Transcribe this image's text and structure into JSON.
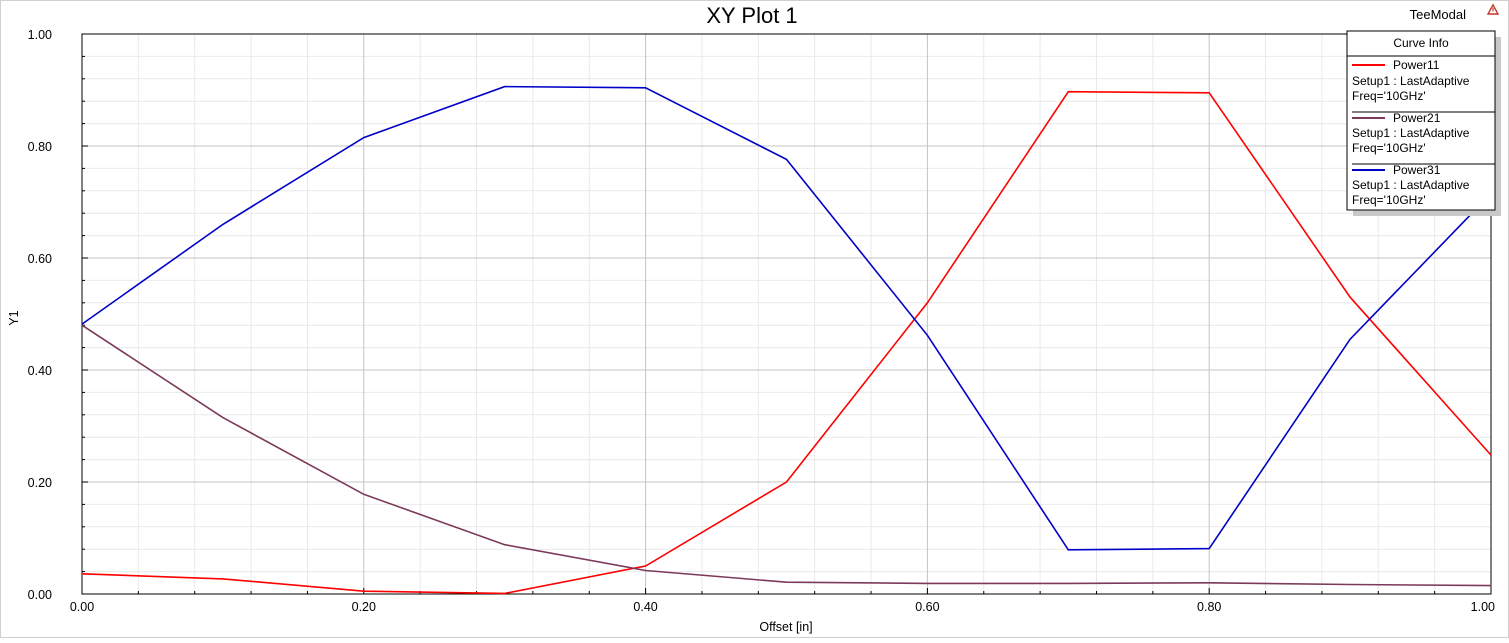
{
  "project_name": "TeeModal",
  "project_icon": "warning-triangle-icon",
  "chart_data": {
    "type": "line",
    "title": "XY Plot 1",
    "xlabel": "Offset [in]",
    "ylabel": "Y1",
    "xlim": [
      0,
      1
    ],
    "ylim": [
      0,
      1
    ],
    "grid": true,
    "x_ticks": [
      "0.00",
      "0.20",
      "0.40",
      "0.60",
      "0.80",
      "1.00"
    ],
    "y_ticks": [
      "0.00",
      "0.20",
      "0.40",
      "0.60",
      "0.80",
      "1.00"
    ],
    "legend": {
      "title": "Curve Info",
      "placement": "top-right"
    },
    "x": [
      0.0,
      0.1,
      0.2,
      0.3,
      0.4,
      0.5,
      0.6,
      0.7,
      0.8,
      0.9,
      1.0
    ],
    "series": [
      {
        "name": "Power11",
        "setup": "Setup1 : LastAdaptive",
        "freq": "Freq='10GHz'",
        "color": "#ff0000",
        "values": [
          0.036,
          0.027,
          0.005,
          0.001,
          0.05,
          0.2,
          0.52,
          0.897,
          0.895,
          0.53,
          0.248
        ]
      },
      {
        "name": "Power21",
        "setup": "Setup1 : LastAdaptive",
        "freq": "Freq='10GHz'",
        "color": "#7b3a5a",
        "values": [
          0.48,
          0.315,
          0.178,
          0.088,
          0.042,
          0.021,
          0.019,
          0.019,
          0.02,
          0.017,
          0.015
        ]
      },
      {
        "name": "Power31",
        "setup": "Setup1 : LastAdaptive",
        "freq": "Freq='10GHz'",
        "color": "#0000c8",
        "values": [
          0.482,
          0.66,
          0.815,
          0.906,
          0.904,
          0.776,
          0.462,
          0.079,
          0.081,
          0.455,
          0.715
        ]
      }
    ]
  }
}
